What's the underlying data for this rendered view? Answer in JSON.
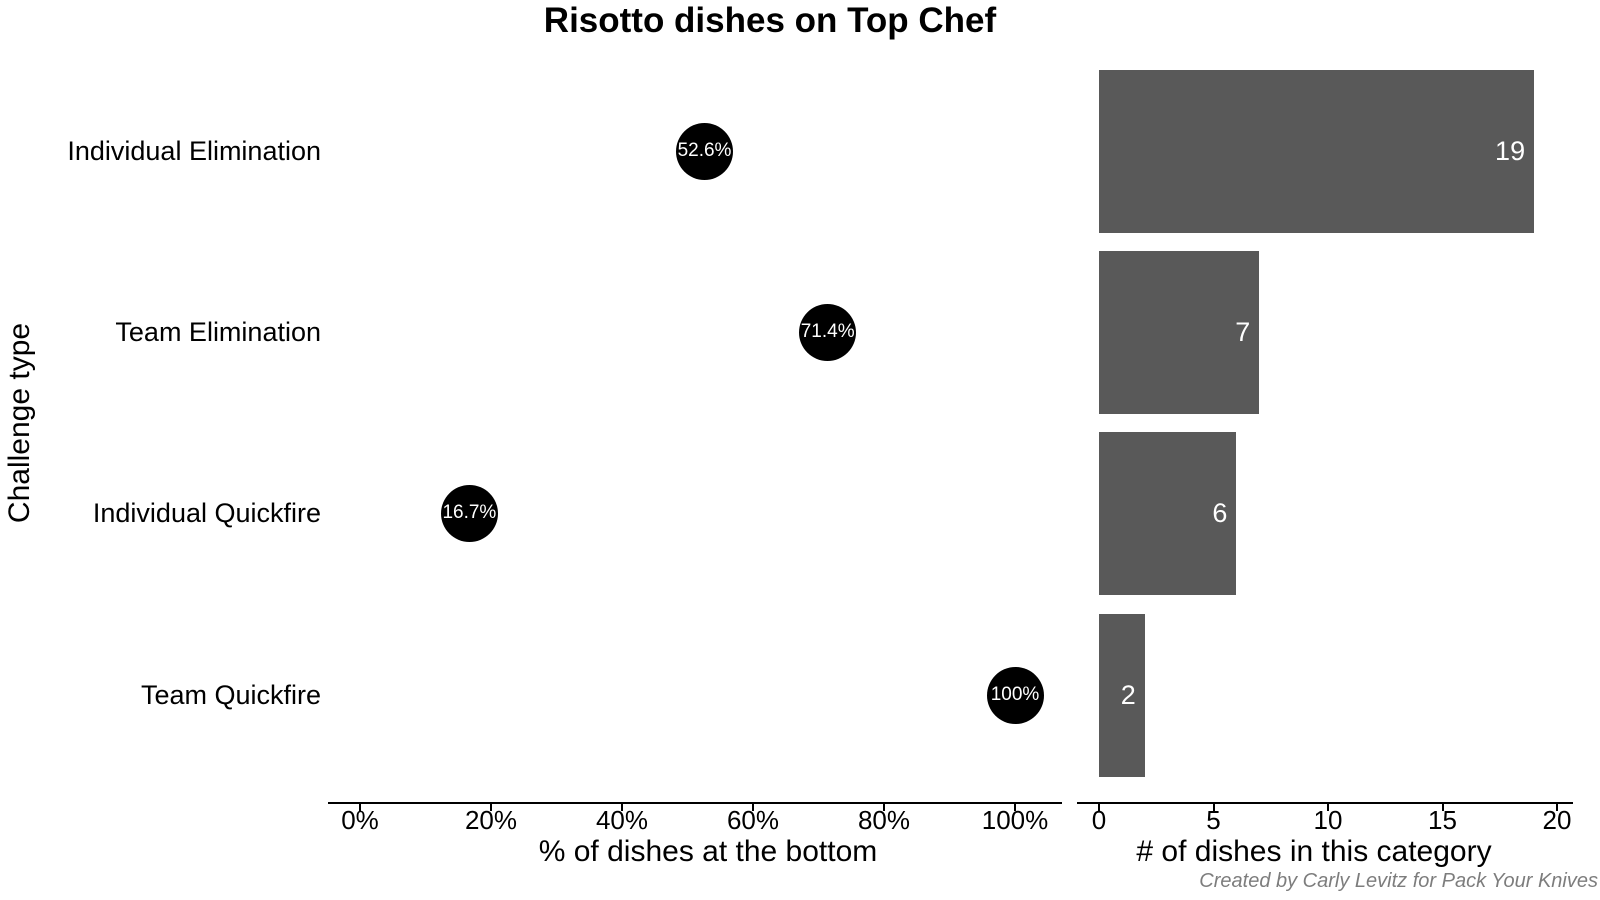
{
  "title": "Risotto dishes on Top Chef",
  "y_axis_title": "Challenge type",
  "caption": "Created by Carly Levitz for Pack Your Knives",
  "colors": {
    "background": "#ffffff",
    "bar": "#595959",
    "bar_label": "#ffffff",
    "dot": "#000000",
    "dot_label": "#ffffff",
    "axis": "#000000",
    "text": "#000000",
    "caption": "#7d7d7d"
  },
  "chart_data": [
    {
      "type": "scatter",
      "panel": "left",
      "title": "Risotto dishes on Top Chef",
      "categories": [
        "Individual Elimination",
        "Team Elimination",
        "Individual Quickfire",
        "Team Quickfire"
      ],
      "values": [
        52.6,
        71.4,
        16.7,
        100
      ],
      "point_labels": [
        "52.6%",
        "71.4%",
        "16.7%",
        "100%"
      ],
      "xlabel": "% of dishes at the bottom",
      "ylabel": "Challenge type",
      "xlim": [
        0,
        100
      ],
      "xticks": [
        0,
        20,
        40,
        60,
        80,
        100
      ],
      "xtick_labels": [
        "0%",
        "20%",
        "40%",
        "60%",
        "80%",
        "100%"
      ],
      "grid": false,
      "legend": "none",
      "point_color": "#000000",
      "point_label_color": "#ffffff"
    },
    {
      "type": "bar",
      "panel": "right",
      "orientation": "horizontal",
      "categories": [
        "Individual Elimination",
        "Team Elimination",
        "Individual Quickfire",
        "Team Quickfire"
      ],
      "values": [
        19,
        7,
        6,
        2
      ],
      "bar_labels": [
        "19",
        "7",
        "6",
        "2"
      ],
      "xlabel": "# of dishes in this category",
      "xlim": [
        0,
        20
      ],
      "xticks": [
        0,
        5,
        10,
        15,
        20
      ],
      "xtick_labels": [
        "0",
        "5",
        "10",
        "15",
        "20"
      ],
      "grid": false,
      "legend": "none",
      "bar_color": "#595959",
      "bar_label_color": "#ffffff"
    }
  ]
}
